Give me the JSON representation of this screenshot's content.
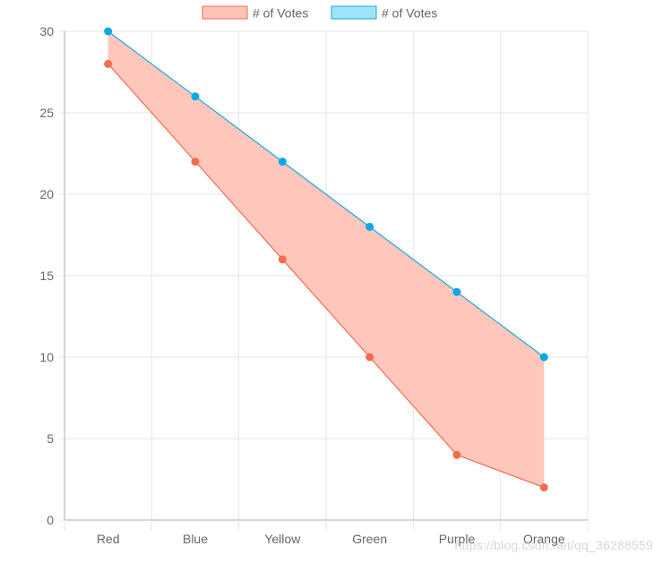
{
  "chart_data": {
    "type": "area",
    "categories": [
      "Red",
      "Blue",
      "Yellow",
      "Green",
      "Purple",
      "Orange"
    ],
    "series": [
      {
        "name": "# of Votes",
        "values": [
          28,
          22,
          16,
          10,
          4,
          2
        ],
        "line_color": "#f26c4f",
        "fill_color": "#ffc4b8",
        "point_color": "#f26c4f"
      },
      {
        "name": "# of Votes",
        "values": [
          30,
          26,
          22,
          18,
          14,
          10
        ],
        "line_color": "#1aa8e0",
        "fill_color": "#9ee3f7",
        "point_color": "#08a9e6"
      }
    ],
    "ylim": [
      0,
      30
    ],
    "yticks": [
      0,
      5,
      10,
      15,
      20,
      25,
      30
    ],
    "grid": true,
    "legend_position": "top"
  },
  "watermark": "https://blog.csdn.net/qq_36288559",
  "colors": {
    "grid": "#e5e5e5",
    "axis": "#aaaaaa",
    "tick_text": "#666666"
  }
}
